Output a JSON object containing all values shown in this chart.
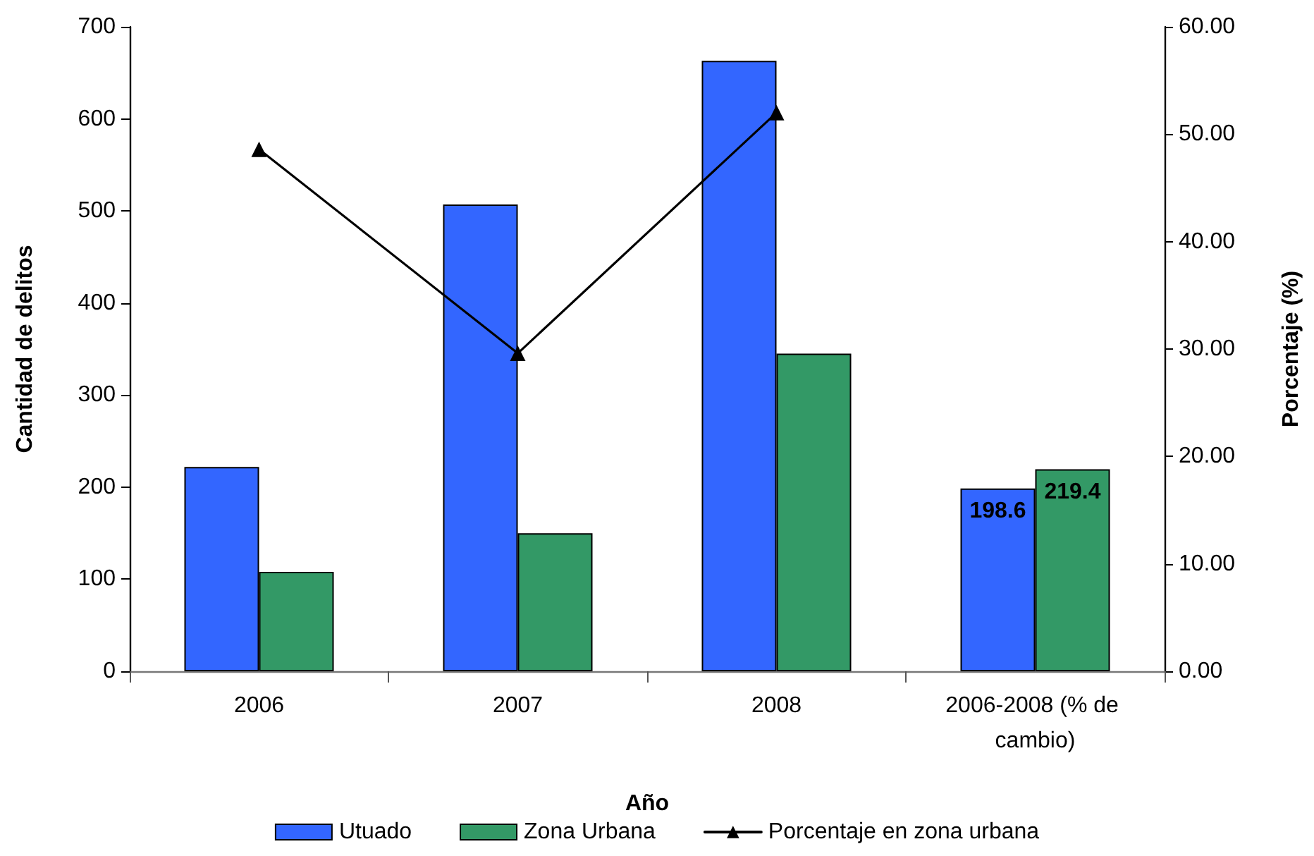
{
  "chart_data": {
    "type": "bar",
    "xlabel": "Año",
    "ylabel": "Cantidad de delitos",
    "y2label": "Porcentaje (%)",
    "categories": [
      "2006",
      "2007",
      "2008",
      "2006-2008 (% de cambio)"
    ],
    "series": [
      {
        "name": "Utuado",
        "color": "#3366ff",
        "values": [
          222,
          507,
          663,
          198.6
        ],
        "value_labels": [
          null,
          null,
          null,
          "198.6"
        ]
      },
      {
        "name": "Zona Urbana",
        "color": "#339966",
        "values": [
          108,
          150,
          345,
          219.4
        ],
        "value_labels": [
          null,
          null,
          null,
          "219.4"
        ]
      },
      {
        "name": "Porcentaje en zona urbana",
        "type": "line",
        "axis": "y2",
        "color": "#000000",
        "values": [
          48.6,
          29.6,
          52.0,
          null
        ]
      }
    ],
    "ylim": [
      0,
      700
    ],
    "yticks": [
      0,
      100,
      200,
      300,
      400,
      500,
      600,
      700
    ],
    "y2lim": [
      0,
      60
    ],
    "y2ticks": [
      {
        "value": 0,
        "label": "0.00"
      },
      {
        "value": 10,
        "label": "10.00"
      },
      {
        "value": 20,
        "label": "20.00"
      },
      {
        "value": 30,
        "label": "30.00"
      },
      {
        "value": 40,
        "label": "40.00"
      },
      {
        "value": 50,
        "label": "50.00"
      },
      {
        "value": 60,
        "label": "60.00"
      }
    ],
    "legend": "bottom",
    "marker": "triangle",
    "line_style": "solid"
  }
}
